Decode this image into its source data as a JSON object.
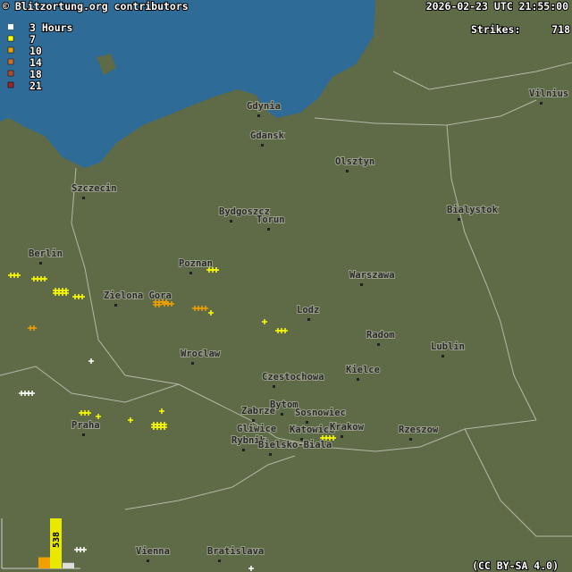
{
  "header": {
    "credit": "© Blitzortung.org contributors",
    "timestamp": "2026-02-23 UTC 21:55:00",
    "strikes_label": "Strikes:",
    "strikes": 718
  },
  "legend": {
    "title": "3 Hours",
    "items": [
      {
        "value": 7,
        "color": "#ffff00"
      },
      {
        "value": 10,
        "color": "#f0a000"
      },
      {
        "value": 14,
        "color": "#c8702a"
      },
      {
        "value": 18,
        "color": "#b84a2a"
      },
      {
        "value": 21,
        "color": "#a02424"
      }
    ]
  },
  "histogram": {
    "bars": [
      {
        "value": 60,
        "color": "#dddddd"
      },
      {
        "value": 120,
        "color": "#f0a000"
      },
      {
        "value": 538,
        "color": "#e8e800"
      }
    ]
  },
  "cities": [
    "Gdynia",
    "Gdansk",
    "Vilnius",
    "Olsztyn",
    "Szczecin",
    "Bydgoszcz",
    "Torun",
    "Bialystok",
    "Berlin",
    "Poznan",
    "Warszawa",
    "Zielona Gora",
    "Lodz",
    "Radom",
    "Lublin",
    "Wroclaw",
    "Kielce",
    "Czestochowa",
    "Bytom",
    "Zabrze",
    "Sosnowiec",
    "Gliwice",
    "Katowice",
    "Krakow",
    "Rzeszow",
    "Rybnik",
    "Bielsko-Biala",
    "Praha",
    "Vienna",
    "Bratislava"
  ],
  "license": "(CC BY-SA 4.0)"
}
